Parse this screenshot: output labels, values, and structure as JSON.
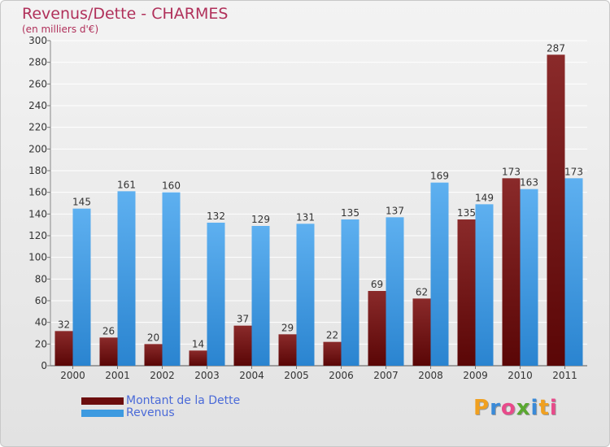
{
  "header": {
    "title": "Revenus/Dette - CHARMES",
    "subtitle": "(en milliers d'€)"
  },
  "chart_data": {
    "type": "bar",
    "title": "Revenus/Dette - CHARMES",
    "subtitle": "(en milliers d'€)",
    "categories": [
      "2000",
      "2001",
      "2002",
      "2003",
      "2004",
      "2005",
      "2006",
      "2007",
      "2008",
      "2009",
      "2010",
      "2011"
    ],
    "series": [
      {
        "name": "Montant de la Dette",
        "color": "#7a1414",
        "values": [
          32,
          26,
          20,
          14,
          37,
          29,
          22,
          69,
          62,
          135,
          173,
          287
        ]
      },
      {
        "name": "Revenus",
        "color": "#3d9ae0",
        "values": [
          145,
          161,
          160,
          132,
          129,
          131,
          135,
          137,
          169,
          149,
          163,
          173
        ]
      }
    ],
    "ylim": [
      0,
      300
    ],
    "yticks": [
      0,
      20,
      40,
      60,
      80,
      100,
      120,
      140,
      160,
      180,
      200,
      220,
      240,
      260,
      280,
      300
    ],
    "grid": true,
    "legend": "bottom-left"
  },
  "legend": {
    "items": [
      {
        "label": "Montant de la Dette",
        "color": "#6b0d0d"
      },
      {
        "label": "Revenus",
        "color": "#3d9ae0"
      }
    ]
  },
  "logo": {
    "text": "Proxiti",
    "letters": [
      {
        "ch": "P",
        "color": "#f0a020"
      },
      {
        "ch": "r",
        "color": "#3a8ad8"
      },
      {
        "ch": "o",
        "color": "#e84a8a"
      },
      {
        "ch": "x",
        "color": "#5aa830"
      },
      {
        "ch": "i",
        "color": "#3a8ad8"
      },
      {
        "ch": "t",
        "color": "#f0a020"
      },
      {
        "ch": "i",
        "color": "#e84a8a"
      }
    ]
  }
}
